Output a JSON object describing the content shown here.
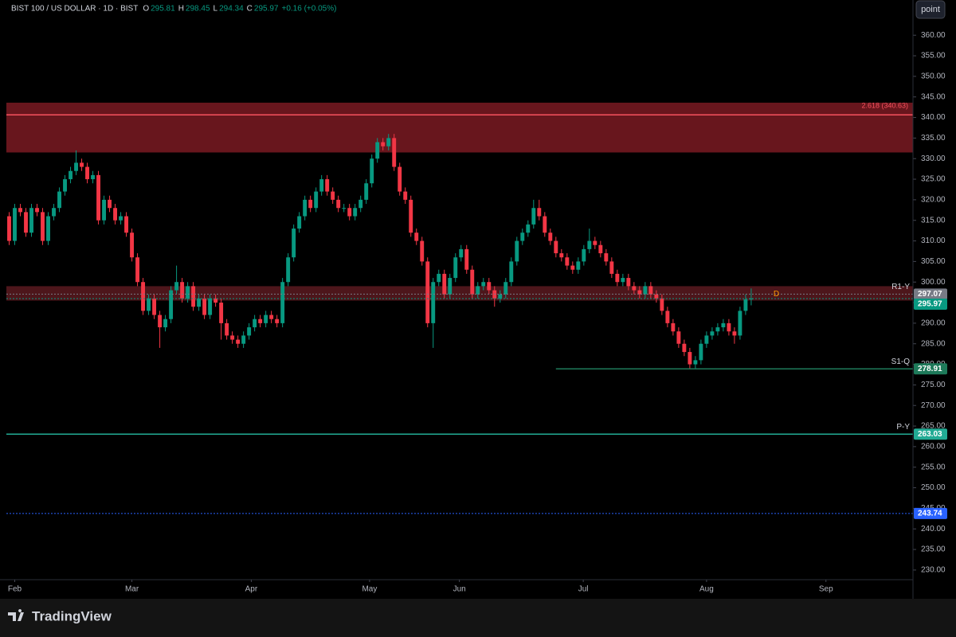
{
  "chart_data": {
    "type": "candlestick",
    "header": {
      "symbol": "BIST 100 / US DOLLAR · 1D · BIST",
      "items": [
        {
          "key": "O",
          "value": 295.81
        },
        {
          "key": "H",
          "value": 298.45
        },
        {
          "key": "L",
          "value": 294.34
        },
        {
          "key": "C",
          "value": 295.97
        }
      ],
      "change": "+0.16 (+0.05%)"
    },
    "button": "point",
    "brand": "TradingView",
    "up_color": "#089981",
    "down_color": "#f23645",
    "open": [
      316,
      310,
      318,
      317,
      312,
      318,
      317,
      310,
      316,
      318,
      322,
      325,
      327,
      329,
      328,
      325,
      326,
      315,
      320,
      318,
      315,
      316,
      312,
      306,
      300,
      293,
      296,
      292,
      289,
      291,
      298,
      300,
      296,
      299,
      294,
      296,
      292,
      296,
      295,
      290,
      287,
      286,
      285,
      287,
      289,
      291,
      290,
      292,
      291,
      290,
      300,
      306,
      313,
      316,
      320,
      318,
      322,
      325,
      322,
      320,
      318,
      318,
      316,
      318,
      320,
      324,
      330,
      334,
      333,
      335,
      328,
      322,
      320,
      312,
      310,
      305,
      290,
      300,
      302,
      297,
      301,
      306,
      308,
      303,
      297,
      299,
      300,
      298,
      296,
      297,
      300,
      305,
      310,
      312,
      314,
      318,
      316,
      312,
      310,
      307,
      306,
      304,
      303,
      305,
      308,
      310,
      309,
      307,
      305,
      302,
      300,
      301,
      299,
      298,
      297,
      299,
      297,
      296,
      293,
      290,
      288,
      285,
      283,
      280,
      281,
      285,
      287,
      288,
      289,
      290,
      288,
      287,
      293,
      295.81
    ],
    "high": [
      317,
      319,
      319,
      318,
      319,
      319,
      318,
      317,
      319,
      323,
      326,
      328,
      332,
      330,
      329,
      327,
      327,
      321,
      321,
      319,
      317,
      317,
      313,
      307,
      301,
      297,
      297,
      293,
      292,
      299,
      304,
      301,
      300,
      300,
      297,
      297,
      297,
      297,
      296,
      291,
      288,
      287,
      288,
      290,
      292,
      292,
      293,
      293,
      292,
      301,
      307,
      314,
      317,
      321,
      321,
      323,
      326,
      326,
      323,
      321,
      319,
      319,
      319,
      321,
      325,
      331,
      335,
      335,
      336,
      336,
      329,
      323,
      321,
      313,
      311,
      306,
      301,
      303,
      303,
      302,
      307,
      309,
      309,
      304,
      300,
      301,
      301,
      299,
      298,
      301,
      306,
      311,
      313,
      315,
      320,
      320,
      317,
      313,
      311,
      308,
      307,
      305,
      306,
      309,
      313,
      311,
      310,
      308,
      306,
      303,
      302,
      302,
      300,
      299,
      300,
      300,
      298,
      297,
      294,
      291,
      289,
      286,
      284,
      282,
      286,
      288,
      289,
      290,
      291,
      291,
      289,
      294,
      297,
      298.45
    ],
    "low": [
      309,
      309,
      316,
      311,
      311,
      316,
      309,
      309,
      315,
      317,
      321,
      324,
      326,
      327,
      324,
      324,
      314,
      314,
      317,
      314,
      314,
      311,
      305,
      299,
      292,
      292,
      291,
      284,
      288,
      290,
      297,
      295,
      295,
      293,
      293,
      291,
      291,
      294,
      286,
      286,
      285,
      284,
      284,
      286,
      288,
      289,
      289,
      290,
      289,
      289,
      299,
      305,
      312,
      315,
      317,
      317,
      321,
      321,
      319,
      317,
      317,
      315,
      315,
      317,
      319,
      323,
      329,
      332,
      332,
      327,
      321,
      319,
      311,
      309,
      304,
      289,
      284,
      299,
      296,
      296,
      300,
      305,
      302,
      296,
      296,
      298,
      297,
      294,
      295,
      296,
      299,
      304,
      309,
      311,
      313,
      315,
      311,
      309,
      306,
      305,
      303,
      302,
      302,
      304,
      307,
      308,
      306,
      304,
      301,
      299,
      299,
      298,
      297,
      296,
      296,
      296,
      295,
      292,
      289,
      287,
      284,
      282,
      279,
      279,
      280,
      284,
      286,
      287,
      288,
      287,
      285,
      286,
      292,
      294.34
    ],
    "close": [
      310,
      318,
      317,
      312,
      318,
      317,
      310,
      316,
      318,
      322,
      325,
      327,
      329,
      328,
      325,
      326,
      315,
      320,
      318,
      315,
      316,
      312,
      306,
      300,
      293,
      296,
      292,
      289,
      291,
      298,
      300,
      296,
      299,
      294,
      296,
      292,
      296,
      295,
      290,
      287,
      286,
      285,
      287,
      289,
      291,
      290,
      292,
      291,
      290,
      300,
      306,
      313,
      316,
      320,
      318,
      322,
      325,
      322,
      320,
      318,
      318,
      316,
      318,
      320,
      324,
      330,
      334,
      333,
      335,
      328,
      322,
      320,
      312,
      310,
      305,
      290,
      300,
      302,
      297,
      301,
      306,
      308,
      303,
      297,
      299,
      300,
      298,
      296,
      297,
      300,
      305,
      310,
      312,
      314,
      318,
      316,
      312,
      310,
      307,
      306,
      304,
      303,
      305,
      308,
      310,
      309,
      307,
      305,
      302,
      300,
      301,
      299,
      298,
      297,
      299,
      297,
      296,
      293,
      290,
      288,
      285,
      283,
      280,
      281,
      285,
      287,
      288,
      289,
      290,
      288,
      287,
      293,
      295.81,
      295.97
    ],
    "xlim": [
      -0.5,
      162
    ],
    "xticks": [
      {
        "value": 1,
        "label": "Feb"
      },
      {
        "value": 22,
        "label": "Mar"
      },
      {
        "value": 43.4,
        "label": "Apr"
      },
      {
        "value": 64.6,
        "label": "May"
      },
      {
        "value": 80.7,
        "label": "Jun"
      },
      {
        "value": 102.9,
        "label": "Jul"
      },
      {
        "value": 125,
        "label": "Aug"
      },
      {
        "value": 146.4,
        "label": "Sep"
      }
    ],
    "ylim": [
      223.4,
      364.3
    ],
    "yticks": [
      {
        "value": 230,
        "label": "230.00"
      },
      {
        "value": 235,
        "label": "235.00"
      },
      {
        "value": 240,
        "label": "240.00"
      },
      {
        "value": 245,
        "label": "245.00"
      },
      {
        "value": 250,
        "label": "250.00"
      },
      {
        "value": 255,
        "label": "255.00"
      },
      {
        "value": 260,
        "label": "260.00"
      },
      {
        "value": 265,
        "label": "265.00"
      },
      {
        "value": 270,
        "label": "270.00"
      },
      {
        "value": 275,
        "label": "275.00"
      },
      {
        "value": 280,
        "label": "280.00"
      },
      {
        "value": 285,
        "label": "285.00"
      },
      {
        "value": 290,
        "label": "290.00"
      },
      {
        "value": 295,
        "label": "295.00"
      },
      {
        "value": 300,
        "label": "300.00"
      },
      {
        "value": 305,
        "label": "305.00"
      },
      {
        "value": 310,
        "label": "310.00"
      },
      {
        "value": 315,
        "label": "315.00"
      },
      {
        "value": 320,
        "label": "320.00"
      },
      {
        "value": 325,
        "label": "325.00"
      },
      {
        "value": 330,
        "label": "330.00"
      },
      {
        "value": 335,
        "label": "335.00"
      },
      {
        "value": 340,
        "label": "340.00"
      },
      {
        "value": 345,
        "label": "345.00"
      },
      {
        "value": 350,
        "label": "350.00"
      },
      {
        "value": 355,
        "label": "355.00"
      },
      {
        "value": 360,
        "label": "360.00"
      }
    ],
    "zones": [
      {
        "from": 331.5,
        "to": 343.6,
        "color": "#7a1a22"
      },
      {
        "from": 295.5,
        "to": 299,
        "color": "#5a1a20"
      }
    ],
    "fib": {
      "label": "2.618 (340.63)",
      "value": 340.63,
      "color": "#f7525f"
    },
    "levels": [
      {
        "label": "R1-Y",
        "value": 297.07,
        "color": "#787b86",
        "start": -0.5
      },
      {
        "value": 295.97,
        "color": "#089981",
        "start": -0.5
      },
      {
        "label": "S1-Q",
        "value": 278.91,
        "color": "#1e7a5a",
        "start": 98
      },
      {
        "label": "P-Y",
        "value": 263.03,
        "color": "#22ab94",
        "start": -0.5
      },
      {
        "value": 243.74,
        "color": "#2962ff",
        "start": -0.5
      }
    ],
    "marker": "D"
  }
}
